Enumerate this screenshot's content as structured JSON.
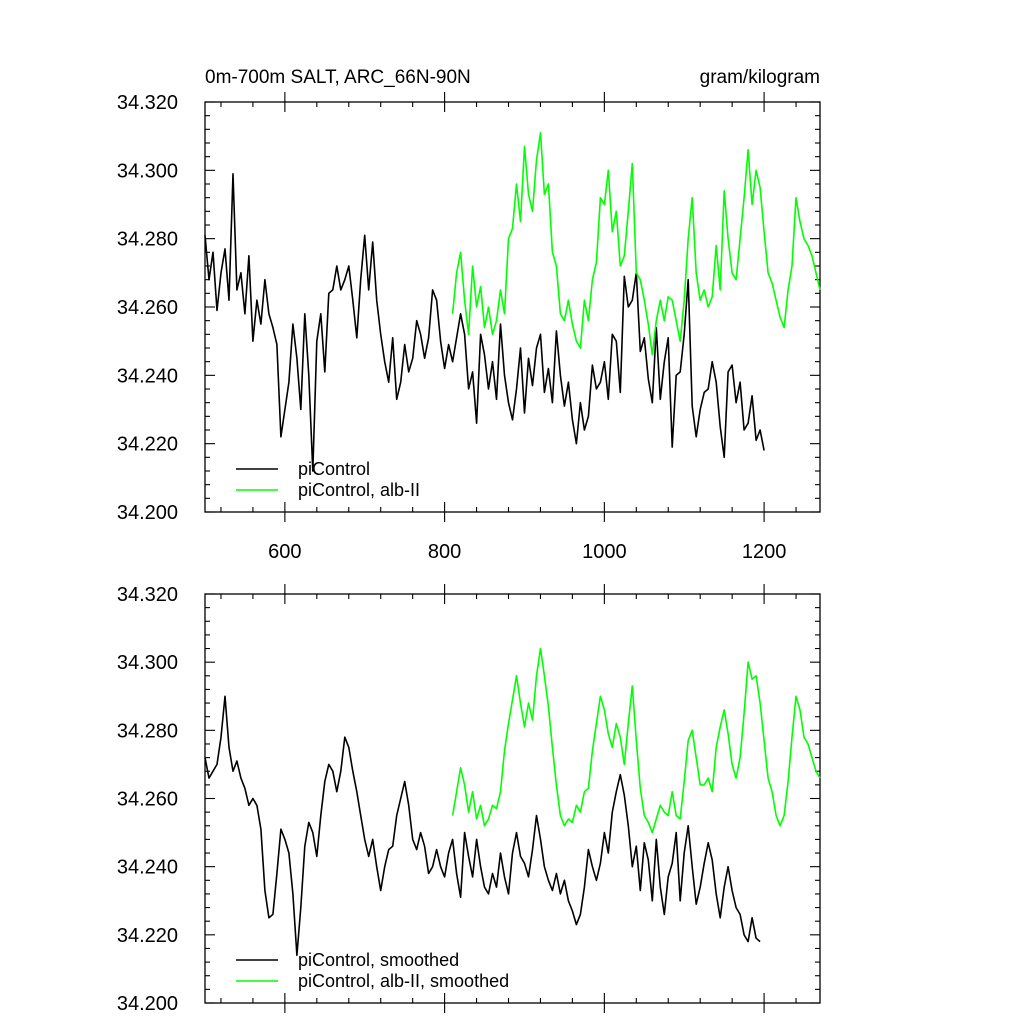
{
  "chart_data": [
    {
      "type": "line",
      "title": "0m-700m SALT, ARC_66N-90N",
      "units": "gram/kilogram",
      "xlim": [
        500,
        1270
      ],
      "ylim": [
        34.2,
        34.32
      ],
      "x_ticks": [
        600,
        800,
        1000,
        1200
      ],
      "x_tick_labels": [
        "600",
        "800",
        "1000",
        "1200"
      ],
      "y_ticks": [
        34.2,
        34.22,
        34.24,
        34.26,
        34.28,
        34.3,
        34.32
      ],
      "y_tick_labels": [
        "34.200",
        "34.220",
        "34.240",
        "34.260",
        "34.280",
        "34.300",
        "34.320"
      ],
      "legend_position": "bottom-left",
      "series": [
        {
          "name": "piControl",
          "color": "#000000",
          "x": [
            500,
            505,
            510,
            515,
            520,
            525,
            530,
            535,
            540,
            545,
            550,
            555,
            560,
            565,
            570,
            575,
            580,
            585,
            590,
            595,
            600,
            605,
            610,
            615,
            620,
            625,
            630,
            635,
            640,
            645,
            650,
            655,
            660,
            665,
            670,
            675,
            680,
            685,
            690,
            695,
            700,
            705,
            710,
            715,
            720,
            725,
            730,
            735,
            740,
            745,
            750,
            755,
            760,
            765,
            770,
            775,
            780,
            785,
            790,
            795,
            800,
            805,
            810,
            815,
            820,
            825,
            830,
            835,
            840,
            845,
            850,
            855,
            860,
            865,
            870,
            875,
            880,
            885,
            890,
            895,
            900,
            905,
            910,
            915,
            920,
            925,
            930,
            935,
            940,
            945,
            950,
            955,
            960,
            965,
            970,
            975,
            980,
            985,
            990,
            995,
            1000,
            1005,
            1010,
            1015,
            1020,
            1025,
            1030,
            1035,
            1040,
            1045,
            1050,
            1055,
            1060,
            1065,
            1070,
            1075,
            1080,
            1085,
            1090,
            1095,
            1100,
            1105,
            1110,
            1115,
            1120,
            1125,
            1130,
            1135,
            1140,
            1145,
            1150,
            1155,
            1160,
            1165,
            1170,
            1175,
            1180,
            1185,
            1190,
            1195,
            1200
          ],
          "values": [
            34.281,
            34.268,
            34.276,
            34.259,
            34.27,
            34.277,
            34.262,
            34.299,
            34.265,
            34.27,
            34.258,
            34.275,
            34.25,
            34.262,
            34.255,
            34.268,
            34.258,
            34.254,
            34.249,
            34.222,
            34.23,
            34.238,
            34.255,
            34.245,
            34.23,
            34.258,
            34.24,
            34.212,
            34.25,
            34.258,
            34.241,
            34.264,
            34.265,
            34.272,
            34.265,
            34.268,
            34.272,
            34.262,
            34.251,
            34.268,
            34.281,
            34.265,
            34.279,
            34.262,
            34.252,
            34.244,
            34.238,
            34.251,
            34.233,
            34.238,
            34.249,
            34.241,
            34.245,
            34.256,
            34.252,
            34.245,
            34.251,
            34.265,
            34.262,
            34.25,
            34.242,
            34.249,
            34.244,
            34.251,
            34.258,
            34.252,
            34.236,
            34.241,
            34.226,
            34.252,
            34.246,
            34.236,
            34.244,
            34.233,
            34.255,
            34.24,
            34.232,
            34.227,
            34.236,
            34.248,
            34.229,
            34.245,
            34.237,
            34.248,
            34.252,
            34.235,
            34.242,
            34.232,
            34.253,
            34.24,
            34.231,
            34.238,
            34.227,
            34.22,
            34.232,
            34.224,
            34.228,
            34.243,
            34.236,
            34.238,
            34.244,
            34.233,
            34.252,
            34.25,
            34.235,
            34.269,
            34.26,
            34.262,
            34.27,
            34.247,
            34.251,
            34.239,
            34.232,
            34.254,
            34.233,
            34.244,
            34.251,
            34.219,
            34.24,
            34.241,
            34.252,
            34.268,
            34.231,
            34.222,
            34.23,
            34.235,
            34.236,
            34.244,
            34.238,
            34.225,
            34.216,
            34.241,
            34.243,
            34.232,
            34.238,
            34.224,
            34.226,
            34.234,
            34.221,
            34.224,
            34.218
          ]
        },
        {
          "name": "piControl, alb-II",
          "color": "#00ff00",
          "x": [
            810,
            815,
            820,
            825,
            830,
            835,
            840,
            845,
            850,
            855,
            860,
            865,
            870,
            875,
            880,
            885,
            890,
            895,
            900,
            905,
            910,
            915,
            920,
            925,
            930,
            935,
            940,
            945,
            950,
            955,
            960,
            965,
            970,
            975,
            980,
            985,
            990,
            995,
            1000,
            1005,
            1010,
            1015,
            1020,
            1025,
            1030,
            1035,
            1040,
            1045,
            1050,
            1055,
            1060,
            1065,
            1070,
            1075,
            1080,
            1085,
            1090,
            1095,
            1100,
            1105,
            1110,
            1115,
            1120,
            1125,
            1130,
            1135,
            1140,
            1145,
            1150,
            1155,
            1160,
            1165,
            1170,
            1175,
            1180,
            1185,
            1190,
            1195,
            1200,
            1205,
            1210,
            1215,
            1220,
            1225,
            1230,
            1235,
            1240,
            1245,
            1250,
            1255,
            1260,
            1265,
            1270
          ],
          "values": [
            34.258,
            34.27,
            34.276,
            34.262,
            34.252,
            34.272,
            34.26,
            34.266,
            34.254,
            34.26,
            34.252,
            34.256,
            34.265,
            34.258,
            34.28,
            34.283,
            34.296,
            34.285,
            34.307,
            34.293,
            34.288,
            34.303,
            34.311,
            34.293,
            34.296,
            34.276,
            34.272,
            34.258,
            34.256,
            34.262,
            34.255,
            34.25,
            34.248,
            34.262,
            34.256,
            34.268,
            34.273,
            34.292,
            34.29,
            34.3,
            34.282,
            34.288,
            34.272,
            34.275,
            34.288,
            34.302,
            34.27,
            34.268,
            34.262,
            34.255,
            34.246,
            34.256,
            34.262,
            34.256,
            34.263,
            34.262,
            34.256,
            34.25,
            34.262,
            34.28,
            34.292,
            34.27,
            34.262,
            34.265,
            34.26,
            34.263,
            34.278,
            34.265,
            34.294,
            34.28,
            34.27,
            34.268,
            34.28,
            34.292,
            34.306,
            34.29,
            34.3,
            34.295,
            34.282,
            34.27,
            34.267,
            34.262,
            34.257,
            34.254,
            34.265,
            34.272,
            34.292,
            34.285,
            34.28,
            34.278,
            34.275,
            34.27,
            34.265
          ]
        }
      ]
    },
    {
      "type": "line",
      "xlim": [
        500,
        1270
      ],
      "ylim": [
        34.2,
        34.32
      ],
      "x_ticks": [
        600,
        800,
        1000,
        1200
      ],
      "y_ticks": [
        34.2,
        34.22,
        34.24,
        34.26,
        34.28,
        34.3,
        34.32
      ],
      "y_tick_labels": [
        "34.200",
        "34.220",
        "34.240",
        "34.260",
        "34.280",
        "34.300",
        "34.320"
      ],
      "legend_position": "bottom-left",
      "series": [
        {
          "name": "piControl, smoothed",
          "color": "#000000",
          "x": [
            500,
            505,
            510,
            515,
            520,
            525,
            530,
            535,
            540,
            545,
            550,
            555,
            560,
            565,
            570,
            575,
            580,
            585,
            590,
            595,
            600,
            605,
            610,
            615,
            620,
            625,
            630,
            635,
            640,
            645,
            650,
            655,
            660,
            665,
            670,
            675,
            680,
            685,
            690,
            695,
            700,
            705,
            710,
            715,
            720,
            725,
            730,
            735,
            740,
            745,
            750,
            755,
            760,
            765,
            770,
            775,
            780,
            785,
            790,
            795,
            800,
            805,
            810,
            815,
            820,
            825,
            830,
            835,
            840,
            845,
            850,
            855,
            860,
            865,
            870,
            875,
            880,
            885,
            890,
            895,
            900,
            905,
            910,
            915,
            920,
            925,
            930,
            935,
            940,
            945,
            950,
            955,
            960,
            965,
            970,
            975,
            980,
            985,
            990,
            995,
            1000,
            1005,
            1010,
            1015,
            1020,
            1025,
            1030,
            1035,
            1040,
            1045,
            1050,
            1055,
            1060,
            1065,
            1070,
            1075,
            1080,
            1085,
            1090,
            1095,
            1100,
            1105,
            1110,
            1115,
            1120,
            1125,
            1130,
            1135,
            1140,
            1145,
            1150,
            1155,
            1160,
            1165,
            1170,
            1175,
            1180,
            1185,
            1190,
            1195
          ],
          "values": [
            34.272,
            34.266,
            34.268,
            34.27,
            34.278,
            34.29,
            34.275,
            34.268,
            34.271,
            34.266,
            34.263,
            34.258,
            34.26,
            34.258,
            34.251,
            34.233,
            34.225,
            34.226,
            34.238,
            34.251,
            34.248,
            34.244,
            34.232,
            34.214,
            34.228,
            34.246,
            34.253,
            34.25,
            34.243,
            34.255,
            34.265,
            34.27,
            34.268,
            34.262,
            34.268,
            34.278,
            34.275,
            34.268,
            34.262,
            34.255,
            34.248,
            34.243,
            34.248,
            34.24,
            34.233,
            34.24,
            34.245,
            34.246,
            34.255,
            34.26,
            34.265,
            34.258,
            34.248,
            34.245,
            34.25,
            34.246,
            34.238,
            34.24,
            34.245,
            34.24,
            34.237,
            34.244,
            34.248,
            34.238,
            34.231,
            34.25,
            34.243,
            34.237,
            34.248,
            34.24,
            34.234,
            34.232,
            34.238,
            34.234,
            34.244,
            34.237,
            34.232,
            34.244,
            34.25,
            34.243,
            34.241,
            34.237,
            34.245,
            34.255,
            34.248,
            34.24,
            34.236,
            34.233,
            34.238,
            34.232,
            34.236,
            34.23,
            34.227,
            34.223,
            34.226,
            34.234,
            34.245,
            34.24,
            34.236,
            34.241,
            34.25,
            34.244,
            34.256,
            34.262,
            34.267,
            34.261,
            34.252,
            34.24,
            34.246,
            34.233,
            34.247,
            34.242,
            34.23,
            34.248,
            34.234,
            34.226,
            34.237,
            34.241,
            34.25,
            34.23,
            34.244,
            34.252,
            34.24,
            34.229,
            34.234,
            34.241,
            34.247,
            34.242,
            34.232,
            34.225,
            34.234,
            34.24,
            34.233,
            34.228,
            34.226,
            34.22,
            34.218,
            34.225,
            34.219,
            34.218
          ]
        },
        {
          "name": "piControl, alb-II, smoothed",
          "color": "#00ff00",
          "x": [
            810,
            815,
            820,
            825,
            830,
            835,
            840,
            845,
            850,
            855,
            860,
            865,
            870,
            875,
            880,
            885,
            890,
            895,
            900,
            905,
            910,
            915,
            920,
            925,
            930,
            935,
            940,
            945,
            950,
            955,
            960,
            965,
            970,
            975,
            980,
            985,
            990,
            995,
            1000,
            1005,
            1010,
            1015,
            1020,
            1025,
            1030,
            1035,
            1040,
            1045,
            1050,
            1055,
            1060,
            1065,
            1070,
            1075,
            1080,
            1085,
            1090,
            1095,
            1100,
            1105,
            1110,
            1115,
            1120,
            1125,
            1130,
            1135,
            1140,
            1145,
            1150,
            1155,
            1160,
            1165,
            1170,
            1175,
            1180,
            1185,
            1190,
            1195,
            1200,
            1205,
            1210,
            1215,
            1220,
            1225,
            1230,
            1235,
            1240,
            1245,
            1250,
            1255,
            1260,
            1265,
            1270
          ],
          "values": [
            34.255,
            34.262,
            34.269,
            34.264,
            34.256,
            34.262,
            34.254,
            34.258,
            34.252,
            34.254,
            34.258,
            34.257,
            34.262,
            34.274,
            34.282,
            34.289,
            34.296,
            34.288,
            34.281,
            34.288,
            34.283,
            34.296,
            34.304,
            34.296,
            34.287,
            34.275,
            34.264,
            34.255,
            34.252,
            34.254,
            34.253,
            34.258,
            34.256,
            34.262,
            34.263,
            34.274,
            34.282,
            34.29,
            34.286,
            34.279,
            34.275,
            34.282,
            34.278,
            34.27,
            34.282,
            34.293,
            34.277,
            34.263,
            34.255,
            34.253,
            34.25,
            34.254,
            34.258,
            34.256,
            34.255,
            34.262,
            34.255,
            34.254,
            34.265,
            34.277,
            34.28,
            34.272,
            34.264,
            34.264,
            34.266,
            34.262,
            34.275,
            34.281,
            34.286,
            34.279,
            34.27,
            34.266,
            34.272,
            34.285,
            34.3,
            34.295,
            34.296,
            34.288,
            34.277,
            34.266,
            34.262,
            34.255,
            34.252,
            34.255,
            34.265,
            34.278,
            34.29,
            34.286,
            34.278,
            34.276,
            34.272,
            34.268,
            34.266
          ]
        }
      ]
    }
  ]
}
